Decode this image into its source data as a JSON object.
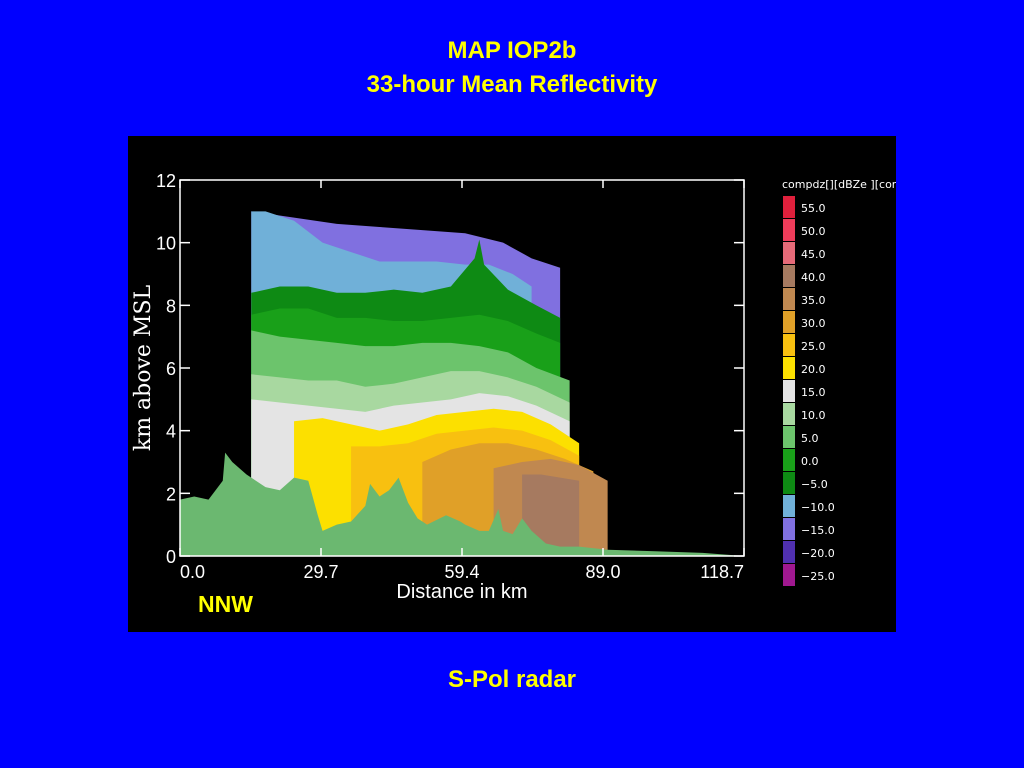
{
  "slide": {
    "title_line1": "MAP IOP2b",
    "title_line2": "33-hour Mean Reflectivity",
    "direction_label": "NNW",
    "caption": "S-Pol radar"
  },
  "chart_data": {
    "type": "heatmap",
    "xlabel": "Distance in km",
    "ylabel": "km above MSL",
    "xlim": [
      0.0,
      118.7
    ],
    "ylim": [
      0,
      12
    ],
    "x_ticks": [
      "0.0",
      "29.7",
      "59.4",
      "89.0",
      "118.7"
    ],
    "y_ticks": [
      "0",
      "2",
      "4",
      "6",
      "8",
      "10",
      "12"
    ],
    "colorbar": {
      "title": "compdz[][dBZe ][con",
      "levels": [
        {
          "label": "55.0",
          "color": "#e0203c"
        },
        {
          "label": "50.0",
          "color": "#ee3c5a"
        },
        {
          "label": "45.0",
          "color": "#e66a78"
        },
        {
          "label": "40.0",
          "color": "#a67a60"
        },
        {
          "label": "35.0",
          "color": "#c08850"
        },
        {
          "label": "30.0",
          "color": "#e0a028"
        },
        {
          "label": "25.0",
          "color": "#f8c010"
        },
        {
          "label": "20.0",
          "color": "#fce000"
        },
        {
          "label": "15.0",
          "color": "#e4e4e4"
        },
        {
          "label": "10.0",
          "color": "#a8d8a0"
        },
        {
          "label": "5.0",
          "color": "#6cc46c"
        },
        {
          "label": "0.0",
          "color": "#19a019"
        },
        {
          "label": "−5.0",
          "color": "#0e8a14"
        },
        {
          "label": "−10.0",
          "color": "#70b0d8"
        },
        {
          "label": "−15.0",
          "color": "#8070e0"
        },
        {
          "label": "−20.0",
          "color": "#5030b0"
        },
        {
          "label": "−25.0",
          "color": "#a01890"
        }
      ]
    },
    "bands": [
      {
        "level": "−15.0",
        "top": [
          [
            15,
            11.0
          ],
          [
            24,
            10.8
          ],
          [
            33,
            10.6
          ],
          [
            42,
            10.5
          ],
          [
            51,
            10.4
          ],
          [
            60,
            10.3
          ],
          [
            68,
            10.0
          ],
          [
            74,
            9.5
          ],
          [
            80,
            9.2
          ]
        ]
      },
      {
        "level": "−10.0",
        "top": [
          [
            15,
            11.0
          ],
          [
            18,
            11.0
          ],
          [
            24,
            10.7
          ],
          [
            30,
            10.0
          ],
          [
            36,
            9.7
          ],
          [
            42,
            9.4
          ],
          [
            48,
            9.4
          ],
          [
            54,
            9.4
          ],
          [
            60,
            9.3
          ],
          [
            65,
            9.3
          ],
          [
            70,
            9.0
          ],
          [
            74,
            8.6
          ]
        ]
      },
      {
        "level": "−5.0",
        "top": [
          [
            15,
            8.4
          ],
          [
            21,
            8.6
          ],
          [
            27,
            8.6
          ],
          [
            33,
            8.4
          ],
          [
            39,
            8.4
          ],
          [
            45,
            8.5
          ],
          [
            51,
            8.4
          ],
          [
            57,
            8.6
          ],
          [
            62,
            9.5
          ],
          [
            63,
            10.1
          ],
          [
            64,
            9.3
          ],
          [
            69,
            8.5
          ],
          [
            75,
            8.0
          ],
          [
            80,
            7.6
          ]
        ]
      },
      {
        "level": "0.0",
        "top": [
          [
            15,
            7.7
          ],
          [
            21,
            7.9
          ],
          [
            27,
            7.9
          ],
          [
            33,
            7.6
          ],
          [
            39,
            7.6
          ],
          [
            45,
            7.5
          ],
          [
            51,
            7.5
          ],
          [
            57,
            7.6
          ],
          [
            63,
            7.7
          ],
          [
            69,
            7.5
          ],
          [
            75,
            7.1
          ],
          [
            80,
            6.8
          ]
        ]
      },
      {
        "level": "5.0",
        "top": [
          [
            15,
            7.2
          ],
          [
            21,
            7.0
          ],
          [
            27,
            6.9
          ],
          [
            33,
            6.8
          ],
          [
            39,
            6.7
          ],
          [
            45,
            6.7
          ],
          [
            51,
            6.8
          ],
          [
            57,
            6.8
          ],
          [
            63,
            6.7
          ],
          [
            69,
            6.5
          ],
          [
            75,
            6.0
          ],
          [
            82,
            5.6
          ]
        ]
      },
      {
        "level": "10.0",
        "top": [
          [
            15,
            5.8
          ],
          [
            21,
            5.7
          ],
          [
            27,
            5.6
          ],
          [
            33,
            5.6
          ],
          [
            39,
            5.4
          ],
          [
            45,
            5.5
          ],
          [
            51,
            5.7
          ],
          [
            57,
            5.9
          ],
          [
            63,
            5.9
          ],
          [
            69,
            5.7
          ],
          [
            75,
            5.4
          ],
          [
            82,
            4.9
          ]
        ]
      },
      {
        "level": "15.0",
        "top": [
          [
            15,
            5.0
          ],
          [
            21,
            4.9
          ],
          [
            27,
            4.8
          ],
          [
            33,
            4.7
          ],
          [
            39,
            4.6
          ],
          [
            45,
            4.8
          ],
          [
            51,
            4.9
          ],
          [
            57,
            5.0
          ],
          [
            63,
            5.2
          ],
          [
            69,
            5.1
          ],
          [
            75,
            4.8
          ],
          [
            82,
            4.3
          ]
        ]
      },
      {
        "level": "20.0",
        "top": [
          [
            24,
            4.3
          ],
          [
            30,
            4.4
          ],
          [
            36,
            4.2
          ],
          [
            42,
            4.0
          ],
          [
            48,
            4.2
          ],
          [
            54,
            4.5
          ],
          [
            60,
            4.6
          ],
          [
            66,
            4.7
          ],
          [
            72,
            4.6
          ],
          [
            78,
            4.2
          ],
          [
            84,
            3.6
          ]
        ]
      },
      {
        "level": "25.0",
        "top": [
          [
            36,
            3.5
          ],
          [
            42,
            3.5
          ],
          [
            48,
            3.6
          ],
          [
            54,
            3.9
          ],
          [
            60,
            4.0
          ],
          [
            66,
            4.1
          ],
          [
            72,
            4.0
          ],
          [
            78,
            3.7
          ],
          [
            84,
            3.2
          ]
        ]
      },
      {
        "level": "30.0",
        "top": [
          [
            51,
            3.0
          ],
          [
            57,
            3.4
          ],
          [
            63,
            3.6
          ],
          [
            69,
            3.6
          ],
          [
            75,
            3.4
          ],
          [
            81,
            3.1
          ],
          [
            87,
            2.7
          ]
        ]
      },
      {
        "level": "35.0",
        "top": [
          [
            66,
            2.8
          ],
          [
            72,
            3.0
          ],
          [
            78,
            3.1
          ],
          [
            84,
            2.9
          ],
          [
            90,
            2.4
          ]
        ]
      },
      {
        "level": "40.0",
        "top": [
          [
            72,
            2.6
          ],
          [
            76,
            2.6
          ],
          [
            80,
            2.5
          ],
          [
            84,
            2.4
          ]
        ]
      }
    ],
    "terrain": [
      [
        0,
        1.8
      ],
      [
        3,
        1.9
      ],
      [
        6,
        1.8
      ],
      [
        9,
        2.4
      ],
      [
        9.5,
        3.3
      ],
      [
        11,
        3.0
      ],
      [
        14,
        2.6
      ],
      [
        18,
        2.2
      ],
      [
        21,
        2.1
      ],
      [
        24,
        2.5
      ],
      [
        27,
        2.4
      ],
      [
        29,
        1.3
      ],
      [
        30,
        0.8
      ],
      [
        33,
        1.0
      ],
      [
        36,
        1.1
      ],
      [
        39,
        1.6
      ],
      [
        40,
        2.3
      ],
      [
        42,
        1.9
      ],
      [
        44,
        2.1
      ],
      [
        46,
        2.5
      ],
      [
        48,
        1.7
      ],
      [
        50,
        1.2
      ],
      [
        52,
        1.0
      ],
      [
        56,
        1.3
      ],
      [
        59,
        1.1
      ],
      [
        60,
        1.0
      ],
      [
        63,
        0.8
      ],
      [
        65,
        0.8
      ],
      [
        67,
        1.5
      ],
      [
        68,
        0.8
      ],
      [
        70,
        0.7
      ],
      [
        72,
        1.2
      ],
      [
        74,
        0.8
      ],
      [
        77,
        0.4
      ],
      [
        80,
        0.3
      ],
      [
        84,
        0.3
      ],
      [
        90,
        0.2
      ],
      [
        100,
        0.15
      ],
      [
        110,
        0.1
      ],
      [
        118.7,
        0.0
      ]
    ]
  }
}
